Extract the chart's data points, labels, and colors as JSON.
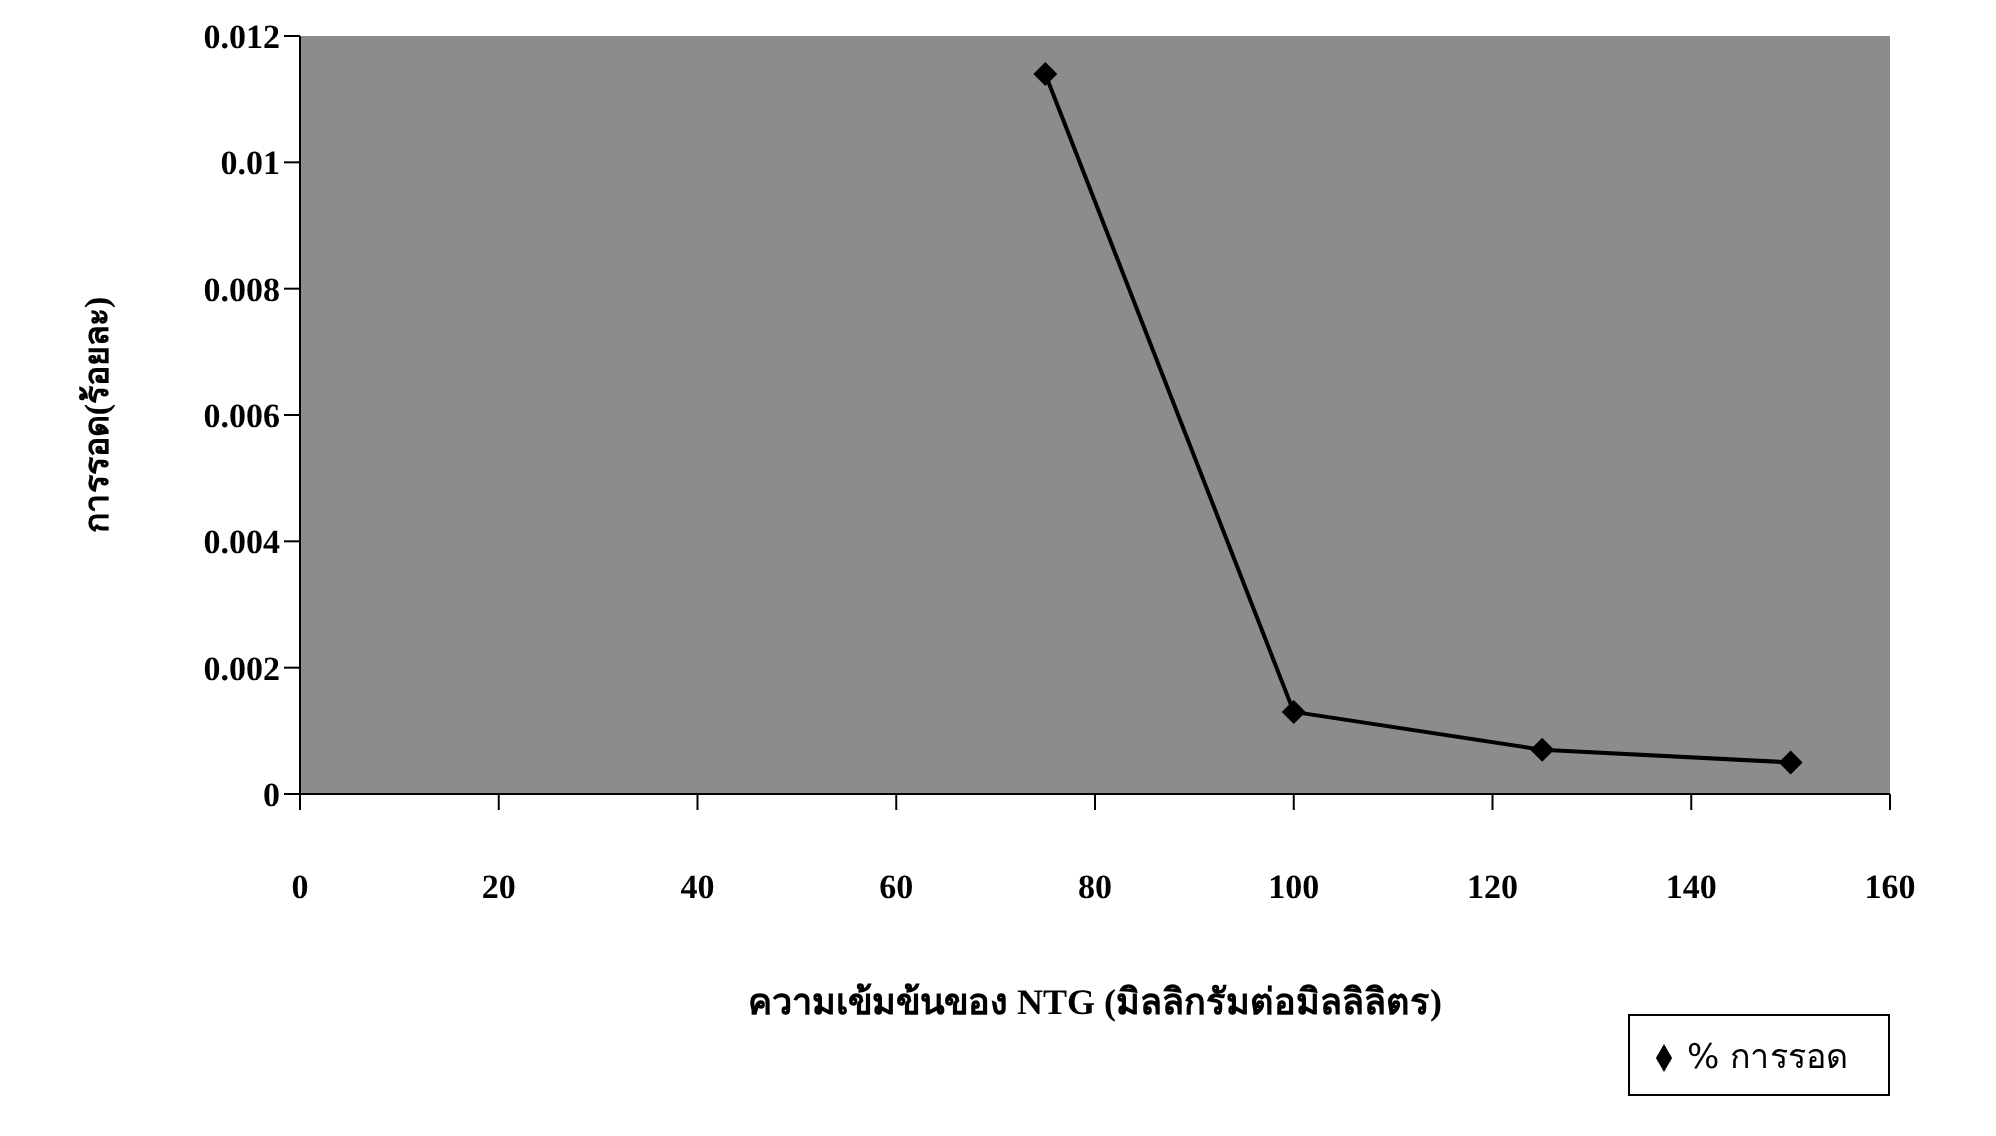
{
  "chart_data": {
    "type": "line",
    "xlabel": "ความเข้มข้นของ NTG (มิลลิกรัมต่อมิลลิลิตร)",
    "ylabel": "การรอด(ร้อยละ)",
    "x": [
      75,
      100,
      125,
      150
    ],
    "series": [
      {
        "name": "% การรอด",
        "color": "#000000",
        "values": [
          0.0114,
          0.0013,
          0.0007,
          0.0005
        ]
      }
    ],
    "xlim": [
      0,
      160
    ],
    "xticks": [
      0,
      20,
      40,
      60,
      80,
      100,
      120,
      140,
      160
    ],
    "ylim": [
      0,
      0.012
    ],
    "yticks": [
      0,
      0.002,
      0.004,
      0.006,
      0.008,
      0.01,
      0.012
    ],
    "marker": "diamond",
    "legend": "bottom right"
  }
}
